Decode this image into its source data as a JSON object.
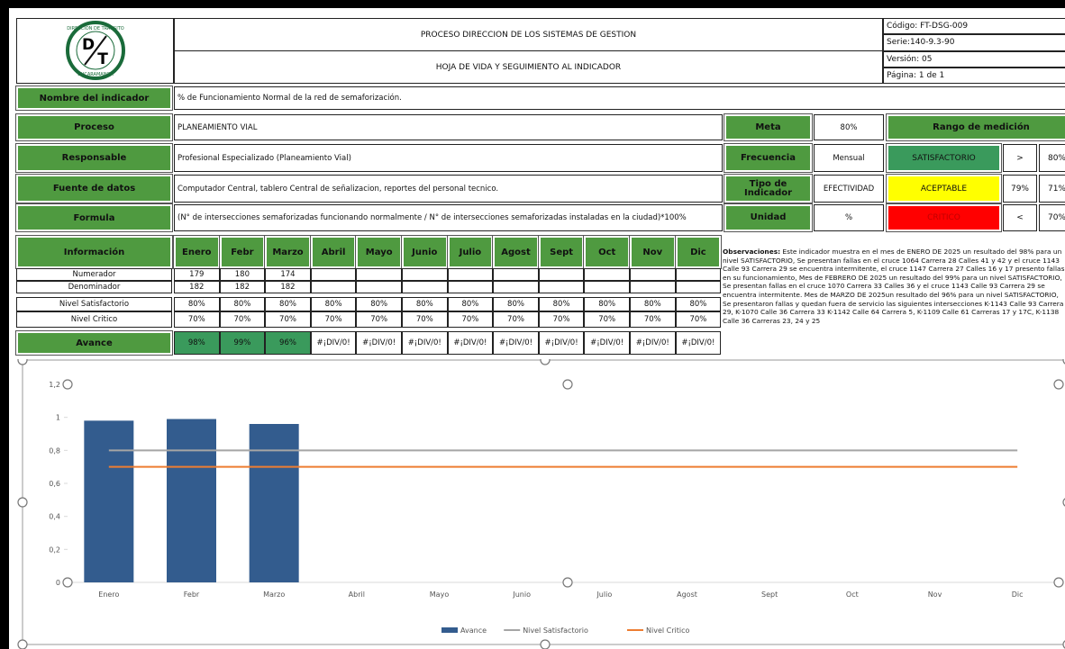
{
  "header": {
    "logo": {
      "top": "DIRECCION DE TRANSITO",
      "letters": [
        "D",
        "T"
      ],
      "bottom": "BUCARAMANGA"
    },
    "title": "PROCESO DIRECCION DE LOS SISTEMAS DE GESTION",
    "subtitle": "HOJA DE VIDA Y SEGUIMIENTO AL INDICADOR",
    "codes": [
      "Código: FT-DSG-009",
      "Serie:140-9.3-90",
      "Versión: 05",
      "Página: 1 de 1"
    ]
  },
  "indicator": [
    {
      "label": "Nombre del indicador",
      "value": "% de Funcionamiento Normal de la red de semaforización."
    },
    {
      "label": "Proceso",
      "value": "PLANEAMIENTO VIAL"
    },
    {
      "label": "Responsable",
      "value": "Profesional Especializado (Planeamiento Vial)"
    },
    {
      "label": "Fuente de datos",
      "value": "Computador Central, tablero Central de señalizacion, reportes del personal tecnico."
    },
    {
      "label": "Formula",
      "value": "(N° de intersecciones semaforizadas funcionando normalmente / N° de intersecciones semaforizadas instaladas en la ciudad)*100%"
    }
  ],
  "details": [
    {
      "label": "Meta",
      "value": "80%"
    },
    {
      "label": "Frecuencia",
      "value": "Mensual"
    },
    {
      "label": "Tipo de Indicador",
      "value": "EFECTIVIDAD"
    },
    {
      "label": "Unidad",
      "value": "%"
    }
  ],
  "range": {
    "title": "Rango de medición",
    "rows": [
      [
        "SATISFACTORIO",
        ">",
        "80%"
      ],
      [
        "ACEPTABLE",
        "79%",
        "71%"
      ],
      [
        "CRITICO",
        "<",
        "70%"
      ]
    ]
  },
  "table": {
    "header": [
      "Información",
      "Enero",
      "Febr",
      "Marzo",
      "Abril",
      "Mayo",
      "Junio",
      "Julio",
      "Agost",
      "Sept",
      "Oct",
      "Nov",
      "Dic"
    ],
    "rows": [
      {
        "label": "Numerador",
        "values": [
          "179",
          "180",
          "174"
        ]
      },
      {
        "label": "Denominador",
        "values": [
          "182",
          "182",
          "182"
        ]
      },
      {
        "label": "Nivel Satisfactorio",
        "values": [
          "80%",
          "80%",
          "80%",
          "80%",
          "80%",
          "80%",
          "80%",
          "80%",
          "80%",
          "80%",
          "80%",
          "80%"
        ]
      },
      {
        "label": "Nivel Critico",
        "values": [
          "70%",
          "70%",
          "70%",
          "70%",
          "70%",
          "70%",
          "70%",
          "70%",
          "70%",
          "70%",
          "70%",
          "70%"
        ]
      },
      {
        "label": "Avance",
        "values": [
          "98%",
          "99%",
          "96%",
          "#¡DIV/0!",
          "#¡DIV/0!",
          "#¡DIV/0!",
          "#¡DIV/0!",
          "#¡DIV/0!",
          "#¡DIV/0!",
          "#¡DIV/0!",
          "#¡DIV/0!",
          "#¡DIV/0!"
        ]
      }
    ]
  },
  "observations": {
    "label": "Observaciones:",
    "text": "Este indicador muestra en el mes de ENERO DE 2025 un resultado del 98% para un nivel SATISFACTORIO, Se presentan fallas en el cruce 1064 Carrera 28 Calles 41 y 42 y el cruce 1143 Calle 93 Carrera 29 se encuentra intermitente, el cruce 1147 Carrera 27 Calles 16 y 17 presento fallas en su funcionamiento, Mes de FEBRERO DE 2025 un resultado del 99% para un nivel SATISFACTORIO, Se presentan fallas en el cruce 1070 Carrera 33 Calles 36 y el cruce 1143 Calle 93 Carrera 29 se encuentra intermitente. Mes de MARZO DE 2025un resultado del 96% para un nivel SATISFACTORIO, Se presentaron fallas y quedan fuera de servicio las siguientes intersecciones K-1143 Calle 93 Carrera 29, K-1070 Calle 36 Carrera 33 K-1142 Calle 64 Carrera 5, K-1109 Calle 61 Carreras 17 y 17C, K-1138 Calle 36 Carreras 23, 24 y 25"
  },
  "chart_data": {
    "type": "bar",
    "categories": [
      "Enero",
      "Febr",
      "Marzo",
      "Abril",
      "Mayo",
      "Junio",
      "Julio",
      "Agost",
      "Sept",
      "Oct",
      "Nov",
      "Dic"
    ],
    "series": [
      {
        "name": "Avance",
        "type": "bar",
        "color": "#335c8e",
        "values": [
          0.98,
          0.99,
          0.96,
          null,
          null,
          null,
          null,
          null,
          null,
          null,
          null,
          null
        ]
      },
      {
        "name": "Nivel Satisfactorio",
        "type": "line",
        "color": "#a5a5a5",
        "values": [
          0.8,
          0.8,
          0.8,
          0.8,
          0.8,
          0.8,
          0.8,
          0.8,
          0.8,
          0.8,
          0.8,
          0.8
        ]
      },
      {
        "name": "Nivel Critico",
        "type": "line",
        "color": "#ed7d31",
        "values": [
          0.7,
          0.7,
          0.7,
          0.7,
          0.7,
          0.7,
          0.7,
          0.7,
          0.7,
          0.7,
          0.7,
          0.7
        ]
      }
    ],
    "ylim": [
      0,
      1.2
    ],
    "yticks": [
      0,
      {
        "value": 0.2,
        "label": "0,2"
      },
      {
        "value": 0.4,
        "label": "0,4"
      },
      {
        "value": 0.6,
        "label": "0,6"
      },
      {
        "value": 0.8,
        "label": "0,8"
      },
      1,
      {
        "value": 1.2,
        "label": "1,2"
      }
    ],
    "legend": "bottom"
  }
}
